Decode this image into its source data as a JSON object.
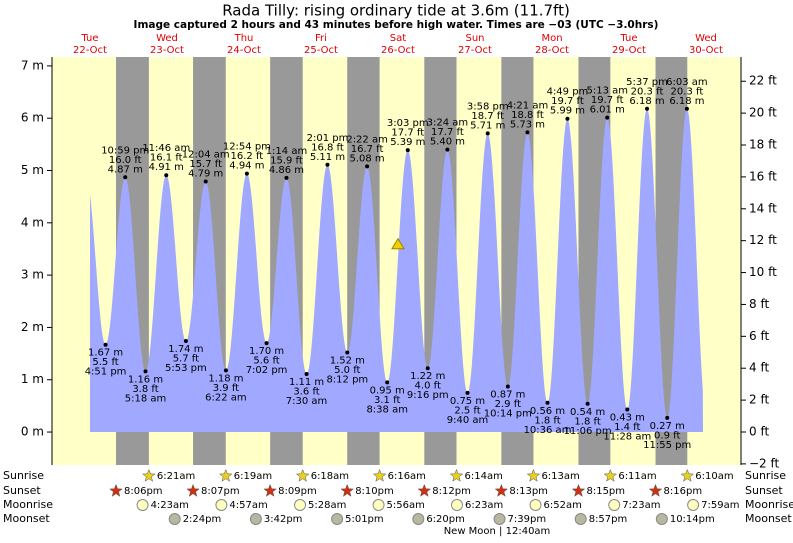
{
  "chart_data": {
    "type": "tide",
    "title": "Rada Tilly: rising  ordinary tide at 3.6m (11.7ft)",
    "subtitle": "Image captured 2 hours and 43 minutes before high water. Times are −03 (UTC −3.0hrs)",
    "current_level_m": 3.6,
    "weekdays": [
      "Tue",
      "Wed",
      "Thu",
      "Fri",
      "Sat",
      "Sun",
      "Mon",
      "Tue",
      "Wed"
    ],
    "dates": [
      "22-Oct",
      "23-Oct",
      "24-Oct",
      "25-Oct",
      "26-Oct",
      "27-Oct",
      "28-Oct",
      "29-Oct",
      "30-Oct"
    ],
    "tides": {
      "times": [
        "4:51 pm",
        "10:59 pm",
        "5:18 am",
        "11:46 am",
        "5:53 pm",
        "12:04 am",
        "6:22 am",
        "12:54 pm",
        "7:02 pm",
        "1:14 am",
        "7:30 am",
        "2:01 pm",
        "8:12 pm",
        "2:22 am",
        "8:38 am",
        "3:03 pm",
        "9:16 pm",
        "3:24 am",
        "9:40 am",
        "3:58 pm",
        "10:14 pm",
        "4:21 am",
        "10:36 am",
        "4:49 pm",
        "11:06 pm",
        "5:13 am",
        "11:28 am",
        "5:37 pm",
        "11:55 pm",
        "6:03 am"
      ],
      "values": [
        1.67,
        4.87,
        1.16,
        4.91,
        1.74,
        4.79,
        1.18,
        4.94,
        1.7,
        4.86,
        1.11,
        5.11,
        1.52,
        5.08,
        0.95,
        5.39,
        1.22,
        5.4,
        0.75,
        5.71,
        0.87,
        5.73,
        0.56,
        5.99,
        0.54,
        6.01,
        0.43,
        6.18,
        0.27,
        6.18
      ],
      "value_labels": [
        "1.67 m",
        "4.87 m",
        "1.16 m",
        "4.91 m",
        "1.74 m",
        "4.79 m",
        "1.18 m",
        "4.94 m",
        "1.70 m",
        "4.86 m",
        "1.11 m",
        "5.11 m",
        "1.52 m",
        "5.08 m",
        "0.95 m",
        "5.39 m",
        "1.22 m",
        "5.40 m",
        "0.75 m",
        "5.71 m",
        "0.87 m",
        "5.73 m",
        "0.56 m",
        "5.99 m",
        "0.54 m",
        "6.01 m",
        "0.43 m",
        "6.18 m",
        "0.27 m",
        "6.18 m"
      ],
      "ft_labels": [
        "5.5 ft",
        "16.0 ft",
        "3.8 ft",
        "16.1 ft",
        "5.7 ft",
        "15.7 ft",
        "3.9 ft",
        "16.2 ft",
        "5.6 ft",
        "15.9 ft",
        "3.6 ft",
        "16.8 ft",
        "5.0 ft",
        "16.7 ft",
        "3.1 ft",
        "17.7 ft",
        "4.0 ft",
        "17.7 ft",
        "2.5 ft",
        "18.7 ft",
        "2.9 ft",
        "18.8 ft",
        "1.8 ft",
        "19.7 ft",
        "1.8 ft",
        "19.7 ft",
        "1.4 ft",
        "20.3 ft",
        "0.9 ft",
        "20.3 ft"
      ]
    },
    "ylim": [
      -0.63,
      7.17
    ],
    "yticks": [
      {
        "value": 0,
        "label": "0 m"
      },
      {
        "value": 1,
        "label": "1 m"
      },
      {
        "value": 2,
        "label": "2 m"
      },
      {
        "value": 3,
        "label": "3 m"
      },
      {
        "value": 4,
        "label": "4 m"
      },
      {
        "value": 5,
        "label": "5 m"
      },
      {
        "value": 6,
        "label": "6 m"
      },
      {
        "value": 7,
        "label": "7 m"
      }
    ],
    "y2lim": [
      -2.07,
      23.52
    ],
    "y2ticks": [
      {
        "value": -2,
        "label": "−2 ft"
      },
      {
        "value": 0,
        "label": "0 ft"
      },
      {
        "value": 2,
        "label": "2 ft"
      },
      {
        "value": 4,
        "label": "4 ft"
      },
      {
        "value": 6,
        "label": "6 ft"
      },
      {
        "value": 8,
        "label": "8 ft"
      },
      {
        "value": 10,
        "label": "10 ft"
      },
      {
        "value": 12,
        "label": "12 ft"
      },
      {
        "value": 14,
        "label": "14 ft"
      },
      {
        "value": 16,
        "label": "16 ft"
      },
      {
        "value": 18,
        "label": "18 ft"
      },
      {
        "value": 20,
        "label": "20 ft"
      },
      {
        "value": 22,
        "label": "22 ft"
      }
    ],
    "color": "#a0a8ff",
    "rows": [
      "Sunrise",
      "Sunset",
      "Moonrise",
      "Moonset"
    ],
    "sunrise": [
      "6:21am",
      "6:19am",
      "6:18am",
      "6:16am",
      "6:14am",
      "6:13am",
      "6:11am",
      "6:10am"
    ],
    "sunset": [
      "8:06pm",
      "8:07pm",
      "8:09pm",
      "8:10pm",
      "8:12pm",
      "8:13pm",
      "8:15pm",
      "8:16pm"
    ],
    "moonrise": [
      "4:23am",
      "4:57am",
      "5:28am",
      "5:56am",
      "6:23am",
      "6:52am",
      "7:23am",
      "7:59am"
    ],
    "moonset": [
      "2:24pm",
      "3:42pm",
      "5:01pm",
      "6:20pm",
      "7:39pm",
      "8:57pm",
      "10:14pm"
    ],
    "moon_phase": "New Moon | 12:40am"
  }
}
